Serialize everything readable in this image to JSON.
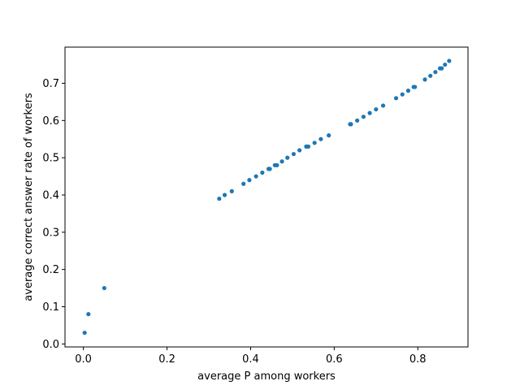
{
  "chart_data": {
    "type": "scatter",
    "title": "",
    "xlabel": "average P among workers",
    "ylabel": "average correct answer rate of workers",
    "xlim": [
      -0.044,
      0.92
    ],
    "ylim": [
      -0.008,
      0.797
    ],
    "xticks": [
      0.0,
      0.2,
      0.4,
      0.6,
      0.8
    ],
    "xtick_labels": [
      "0.0",
      "0.2",
      "0.4",
      "0.6",
      "0.8"
    ],
    "yticks": [
      0.0,
      0.1,
      0.2,
      0.3,
      0.4,
      0.5,
      0.6,
      0.7
    ],
    "ytick_labels": [
      "0.0",
      "0.1",
      "0.2",
      "0.3",
      "0.4",
      "0.5",
      "0.6",
      "0.7"
    ],
    "grid": false,
    "marker_color": "#1f77b4",
    "series": [
      {
        "x": [
          0.003,
          0.012,
          0.05,
          0.325,
          0.338,
          0.355,
          0.383,
          0.397,
          0.413,
          0.428,
          0.443,
          0.446,
          0.458,
          0.463,
          0.475,
          0.488,
          0.503,
          0.517,
          0.533,
          0.538,
          0.553,
          0.568,
          0.587,
          0.638,
          0.64,
          0.655,
          0.67,
          0.685,
          0.7,
          0.717,
          0.748,
          0.763,
          0.777,
          0.79,
          0.793,
          0.817,
          0.83,
          0.842,
          0.853,
          0.857,
          0.865,
          0.875
        ],
        "y": [
          0.03,
          0.08,
          0.15,
          0.39,
          0.4,
          0.41,
          0.43,
          0.44,
          0.45,
          0.46,
          0.47,
          0.47,
          0.48,
          0.48,
          0.49,
          0.5,
          0.51,
          0.52,
          0.53,
          0.53,
          0.54,
          0.55,
          0.56,
          0.59,
          0.59,
          0.6,
          0.61,
          0.62,
          0.63,
          0.64,
          0.66,
          0.67,
          0.68,
          0.69,
          0.69,
          0.71,
          0.72,
          0.73,
          0.74,
          0.74,
          0.75,
          0.76
        ]
      }
    ]
  }
}
